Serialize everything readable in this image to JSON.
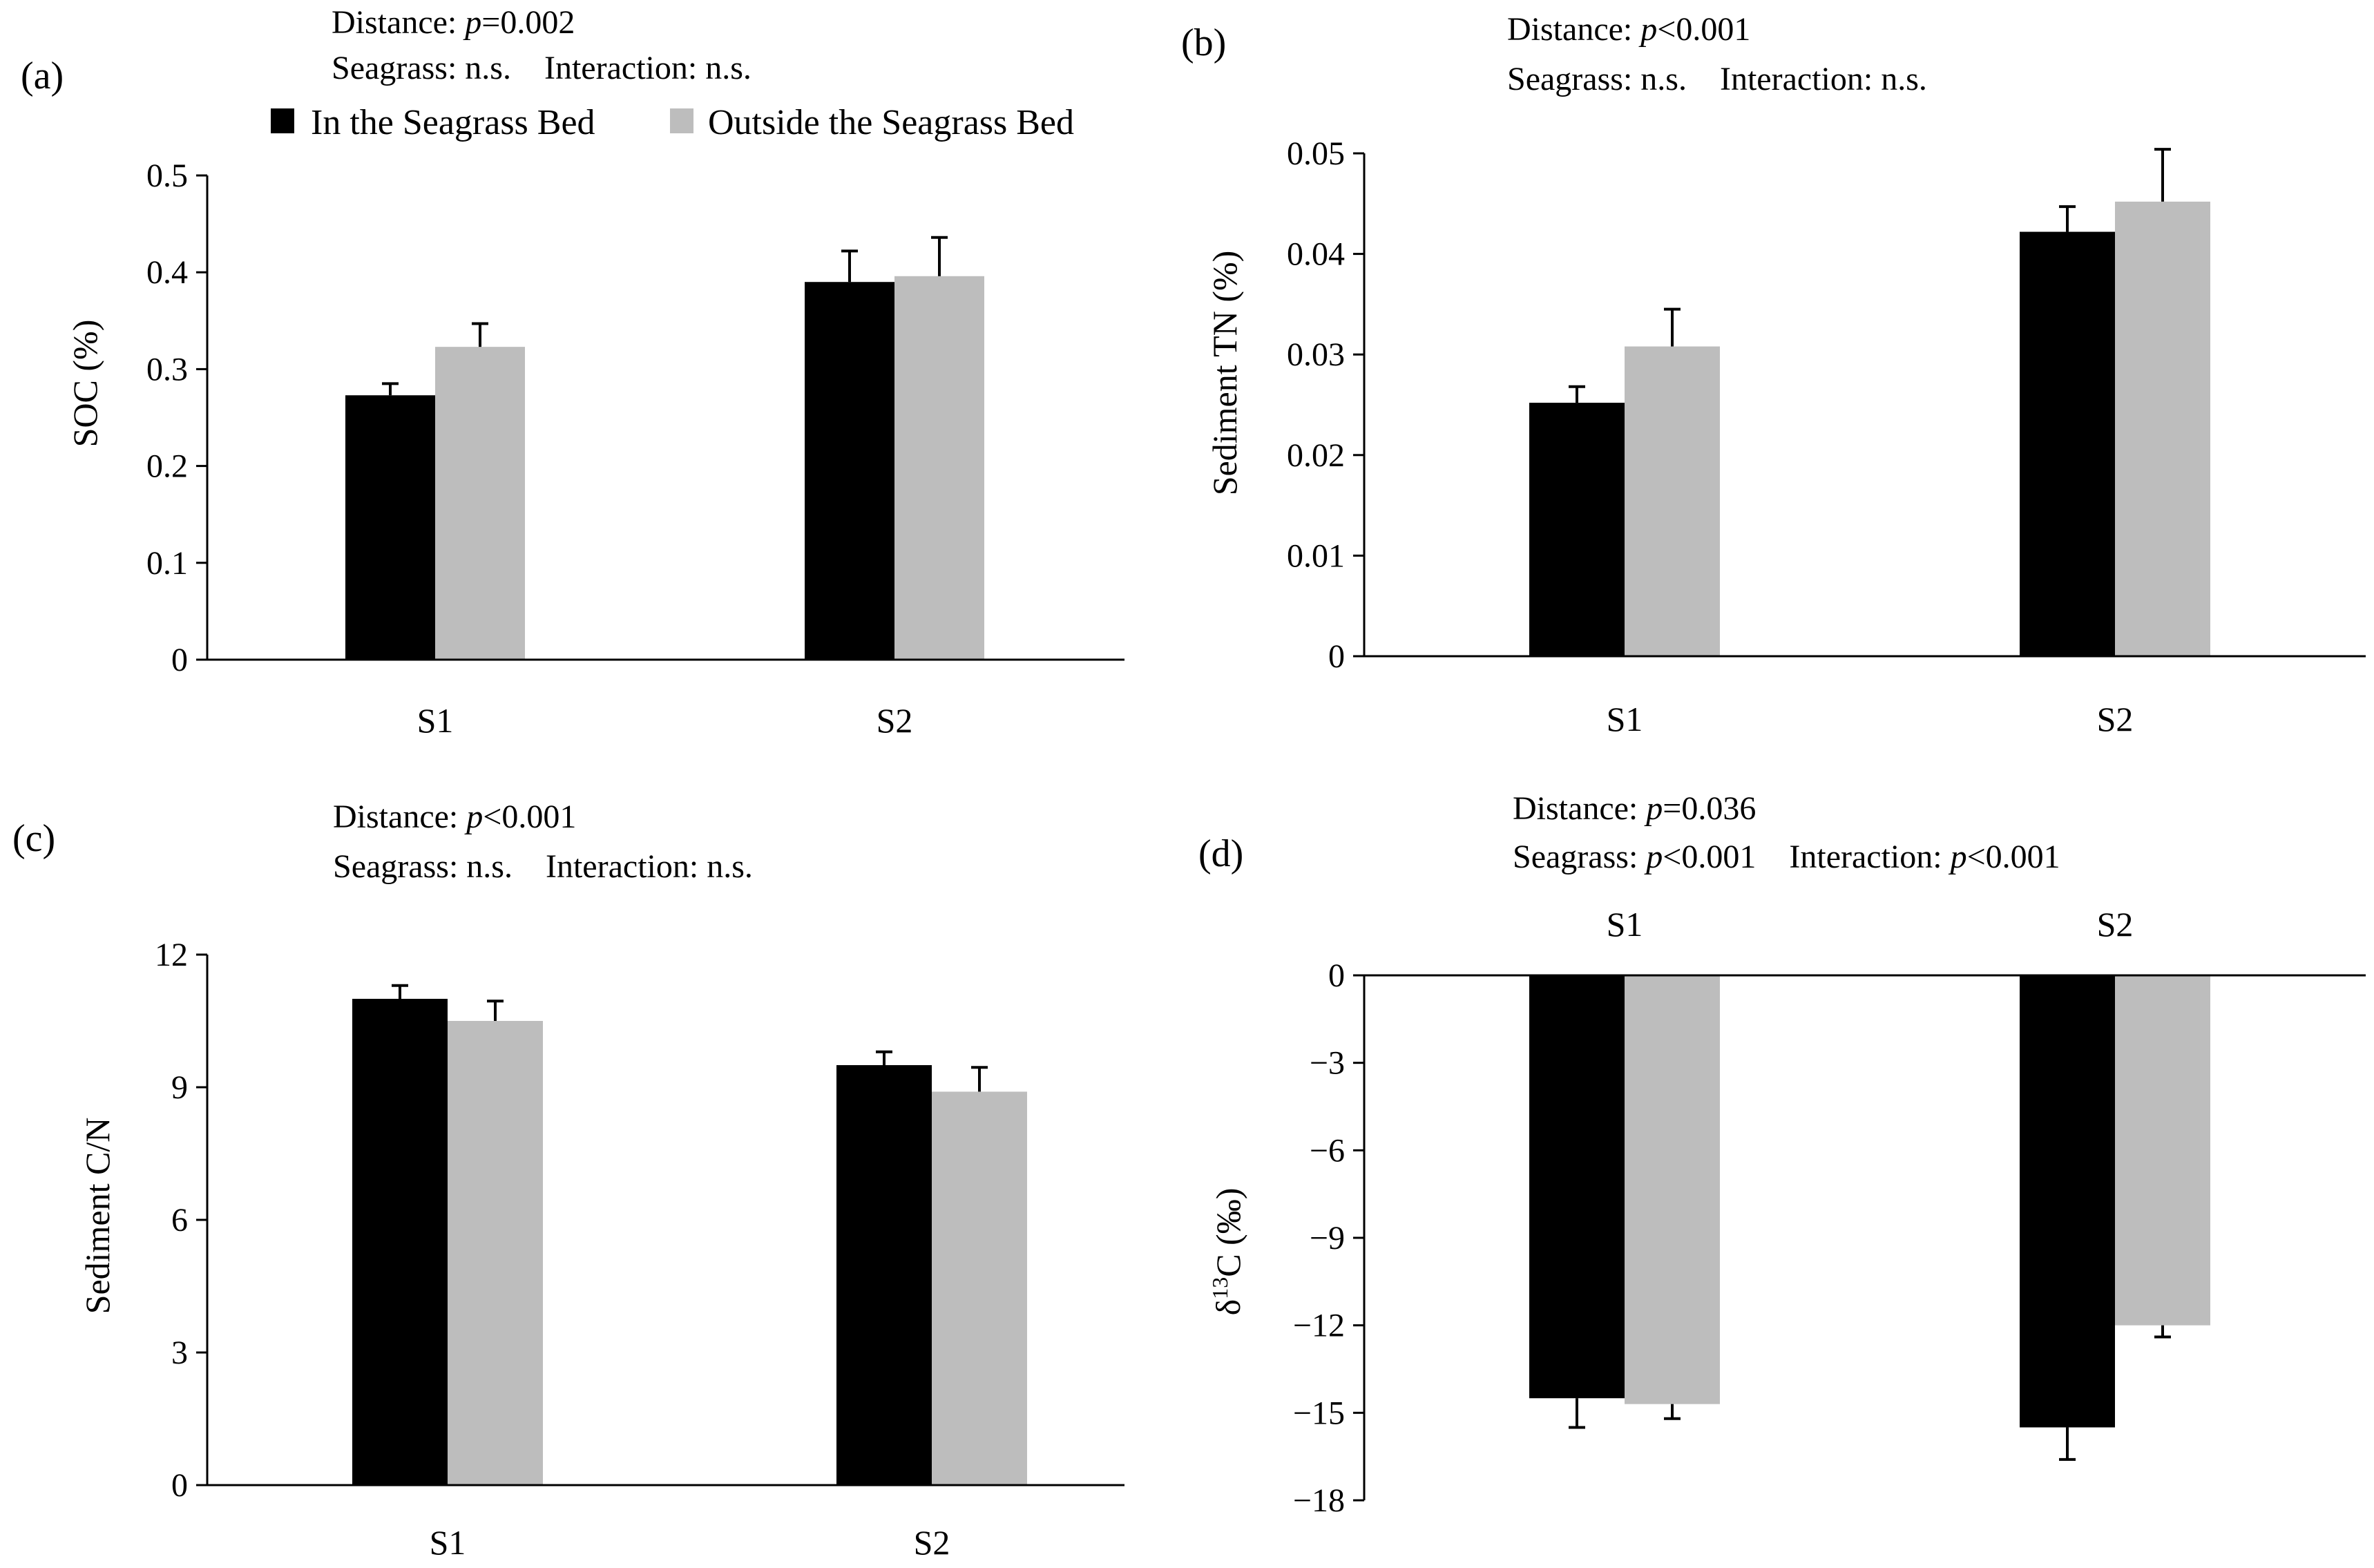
{
  "legend": {
    "in_label": "In the Seagrass Bed",
    "out_label": "Outside the Seagrass Bed"
  },
  "colors": {
    "in": "#000000",
    "out": "#bdbdbd"
  },
  "chart_data": [
    {
      "type": "bar",
      "panel_label": "(a)",
      "ann_line1": "Distance: ",
      "ann_p1": "p",
      "ann_v1": "=0.002",
      "ann_line2": "Seagrass: n.s.    Interaction: n.s.",
      "ylabel": "SOC (%)",
      "ylim": [
        0,
        0.5
      ],
      "yticks": [
        0,
        0.1,
        0.2,
        0.3,
        0.4,
        0.5
      ],
      "ytick_labels": [
        "0",
        "0.1",
        "0.2",
        "0.3",
        "0.4",
        "0.5"
      ],
      "categories": [
        "S1",
        "S2"
      ],
      "series": [
        {
          "name": "In the Seagrass Bed",
          "values": [
            0.273,
            0.39
          ],
          "errors": [
            0.012,
            0.032
          ]
        },
        {
          "name": "Outside the Seagrass Bed",
          "values": [
            0.323,
            0.396
          ],
          "errors": [
            0.024,
            0.04
          ]
        }
      ]
    },
    {
      "type": "bar",
      "panel_label": "(b)",
      "ann_line1": "Distance: ",
      "ann_p1": "p",
      "ann_v1": "<0.001",
      "ann_line2": "Seagrass: n.s.    Interaction: n.s.",
      "ylabel": "Sediment TN (%)",
      "ylim": [
        0,
        0.05
      ],
      "yticks": [
        0,
        0.01,
        0.02,
        0.03,
        0.04,
        0.05
      ],
      "ytick_labels": [
        "0",
        "0.01",
        "0.02",
        "0.03",
        "0.04",
        "0.05"
      ],
      "categories": [
        "S1",
        "S2"
      ],
      "series": [
        {
          "name": "In the Seagrass Bed",
          "values": [
            0.0252,
            0.0422
          ],
          "errors": [
            0.0016,
            0.0025
          ]
        },
        {
          "name": "Outside the Seagrass Bed",
          "values": [
            0.0308,
            0.0452
          ],
          "errors": [
            0.0037,
            0.0052
          ]
        }
      ]
    },
    {
      "type": "bar",
      "panel_label": "(c)",
      "ann_line1": "Distance: ",
      "ann_p1": "p",
      "ann_v1": "<0.001",
      "ann_line2": "Seagrass: n.s.    Interaction: n.s.",
      "ylabel": "Sediment C/N",
      "ylim": [
        0,
        12
      ],
      "yticks": [
        0,
        3,
        6,
        9,
        12
      ],
      "ytick_labels": [
        "0",
        "3",
        "6",
        "9",
        "12"
      ],
      "categories": [
        "S1",
        "S2"
      ],
      "series": [
        {
          "name": "In the Seagrass Bed",
          "values": [
            11.0,
            9.5
          ],
          "errors": [
            0.3,
            0.3
          ]
        },
        {
          "name": "Outside the Seagrass Bed",
          "values": [
            10.5,
            8.9
          ],
          "errors": [
            0.45,
            0.55
          ]
        }
      ]
    },
    {
      "type": "bar",
      "panel_label": "(d)",
      "ann_line1": "Distance: ",
      "ann_p1": "p",
      "ann_v1": "=0.036",
      "ann_line2a": "Seagrass: ",
      "ann_p2": "p",
      "ann_v2": "<0.001",
      "ann_line2b": "    Interaction: ",
      "ann_p3": "p",
      "ann_v3": "<0.001",
      "ylabel": "δ13C (‰)",
      "ylabel_delta": "δ",
      "ylabel_sup": "13",
      "ylabel_rest": "C (‰)",
      "ylim": [
        -18,
        0
      ],
      "yticks": [
        0,
        -3,
        -6,
        -9,
        -12,
        -15,
        -18
      ],
      "ytick_labels": [
        "0",
        "−3",
        "−6",
        "−9",
        "−12",
        "−15",
        "−18"
      ],
      "categories": [
        "S1",
        "S2"
      ],
      "series": [
        {
          "name": "In the Seagrass Bed",
          "values": [
            -14.5,
            -15.5
          ],
          "errors": [
            1.0,
            1.1
          ]
        },
        {
          "name": "Outside the Seagrass Bed",
          "values": [
            -14.7,
            -12.0
          ],
          "errors": [
            0.5,
            0.4
          ]
        }
      ]
    }
  ]
}
